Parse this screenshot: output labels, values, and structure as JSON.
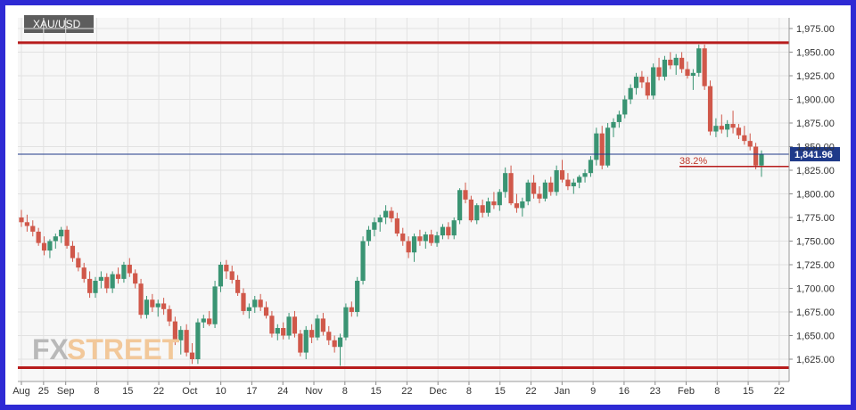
{
  "symbol": "XAU/USD",
  "watermark": {
    "part1": "FX",
    "part2": "STREET"
  },
  "current_price_label": "1,841.96",
  "fib_label": "38.2%",
  "colors": {
    "frame": "#2e2ad4",
    "bull": "#3a9473",
    "bear": "#d0584a",
    "level": "#b71c1c",
    "price_line": "#1f3a8a"
  },
  "chart_data": {
    "type": "candlestick",
    "title": "XAU/USD",
    "ylim": [
      1610,
      1985
    ],
    "y_ticks": [
      "1,975.00",
      "1,950.00",
      "1,925.00",
      "1,900.00",
      "1,875.00",
      "1,850.00",
      "1,825.00",
      "1,800.00",
      "1,775.00",
      "1,750.00",
      "1,725.00",
      "1,700.00",
      "1,675.00",
      "1,650.00",
      "1,625.00"
    ],
    "y_tick_values": [
      1975,
      1950,
      1925,
      1900,
      1875,
      1850,
      1825,
      1800,
      1775,
      1750,
      1725,
      1700,
      1675,
      1650,
      1625
    ],
    "x_ticks": [
      "Aug",
      "25",
      "Sep",
      "8",
      "15",
      "22",
      "Oct",
      "10",
      "17",
      "24",
      "Nov",
      "8",
      "15",
      "22",
      "Dec",
      "8",
      "15",
      "22",
      "Jan",
      "9",
      "16",
      "23",
      "Feb",
      "8",
      "15",
      "22"
    ],
    "x_tick_days": [
      0,
      5,
      10,
      17,
      24,
      31,
      38,
      45,
      52,
      59,
      66,
      73,
      80,
      87,
      94,
      101,
      108,
      115,
      122,
      129,
      136,
      143,
      150,
      157,
      164,
      171
    ],
    "horizontal_levels": [
      1960,
      1616
    ],
    "fib_level": 1829,
    "current_price": 1841.96,
    "ohlc": [
      [
        1775,
        1783,
        1765,
        1770
      ],
      [
        1770,
        1778,
        1760,
        1766
      ],
      [
        1766,
        1772,
        1755,
        1760
      ],
      [
        1760,
        1764,
        1745,
        1748
      ],
      [
        1748,
        1755,
        1735,
        1740
      ],
      [
        1740,
        1752,
        1732,
        1750
      ],
      [
        1750,
        1758,
        1742,
        1755
      ],
      [
        1755,
        1765,
        1748,
        1762
      ],
      [
        1762,
        1766,
        1742,
        1745
      ],
      [
        1745,
        1750,
        1728,
        1732
      ],
      [
        1732,
        1738,
        1718,
        1722
      ],
      [
        1722,
        1727,
        1706,
        1710
      ],
      [
        1710,
        1718,
        1690,
        1695
      ],
      [
        1695,
        1712,
        1690,
        1708
      ],
      [
        1708,
        1718,
        1700,
        1712
      ],
      [
        1712,
        1716,
        1695,
        1700
      ],
      [
        1700,
        1718,
        1695,
        1715
      ],
      [
        1715,
        1722,
        1705,
        1710
      ],
      [
        1710,
        1728,
        1706,
        1725
      ],
      [
        1725,
        1732,
        1712,
        1716
      ],
      [
        1716,
        1720,
        1700,
        1705
      ],
      [
        1705,
        1710,
        1668,
        1672
      ],
      [
        1672,
        1692,
        1668,
        1688
      ],
      [
        1688,
        1694,
        1675,
        1680
      ],
      [
        1680,
        1688,
        1670,
        1684
      ],
      [
        1684,
        1690,
        1672,
        1678
      ],
      [
        1678,
        1682,
        1660,
        1665
      ],
      [
        1665,
        1670,
        1640,
        1645
      ],
      [
        1645,
        1660,
        1630,
        1656
      ],
      [
        1656,
        1662,
        1628,
        1632
      ],
      [
        1632,
        1642,
        1620,
        1625
      ],
      [
        1625,
        1668,
        1620,
        1664
      ],
      [
        1664,
        1672,
        1658,
        1668
      ],
      [
        1668,
        1676,
        1660,
        1662
      ],
      [
        1662,
        1708,
        1658,
        1702
      ],
      [
        1702,
        1728,
        1696,
        1725
      ],
      [
        1725,
        1730,
        1710,
        1718
      ],
      [
        1718,
        1724,
        1705,
        1709
      ],
      [
        1709,
        1714,
        1692,
        1695
      ],
      [
        1695,
        1700,
        1672,
        1676
      ],
      [
        1676,
        1684,
        1668,
        1680
      ],
      [
        1680,
        1692,
        1674,
        1688
      ],
      [
        1688,
        1694,
        1676,
        1680
      ],
      [
        1680,
        1686,
        1668,
        1671
      ],
      [
        1671,
        1676,
        1648,
        1652
      ],
      [
        1652,
        1662,
        1645,
        1658
      ],
      [
        1658,
        1664,
        1646,
        1650
      ],
      [
        1650,
        1674,
        1646,
        1670
      ],
      [
        1670,
        1676,
        1648,
        1652
      ],
      [
        1652,
        1656,
        1628,
        1632
      ],
      [
        1632,
        1660,
        1625,
        1656
      ],
      [
        1656,
        1662,
        1642,
        1648
      ],
      [
        1648,
        1672,
        1645,
        1668
      ],
      [
        1668,
        1674,
        1650,
        1654
      ],
      [
        1654,
        1660,
        1640,
        1645
      ],
      [
        1645,
        1650,
        1632,
        1638
      ],
      [
        1638,
        1652,
        1618,
        1648
      ],
      [
        1648,
        1684,
        1645,
        1680
      ],
      [
        1680,
        1686,
        1670,
        1675
      ],
      [
        1675,
        1712,
        1670,
        1708
      ],
      [
        1708,
        1755,
        1704,
        1750
      ],
      [
        1750,
        1766,
        1745,
        1762
      ],
      [
        1762,
        1775,
        1755,
        1770
      ],
      [
        1770,
        1778,
        1760,
        1775
      ],
      [
        1775,
        1788,
        1768,
        1782
      ],
      [
        1782,
        1786,
        1770,
        1774
      ],
      [
        1774,
        1780,
        1755,
        1758
      ],
      [
        1758,
        1764,
        1745,
        1750
      ],
      [
        1750,
        1755,
        1732,
        1738
      ],
      [
        1738,
        1758,
        1728,
        1755
      ],
      [
        1755,
        1762,
        1745,
        1750
      ],
      [
        1750,
        1760,
        1742,
        1757
      ],
      [
        1757,
        1762,
        1745,
        1748
      ],
      [
        1748,
        1760,
        1744,
        1756
      ],
      [
        1756,
        1768,
        1752,
        1765
      ],
      [
        1765,
        1770,
        1752,
        1756
      ],
      [
        1756,
        1775,
        1752,
        1772
      ],
      [
        1772,
        1806,
        1768,
        1804
      ],
      [
        1804,
        1812,
        1790,
        1794
      ],
      [
        1794,
        1798,
        1770,
        1772
      ],
      [
        1772,
        1790,
        1768,
        1788
      ],
      [
        1788,
        1794,
        1775,
        1780
      ],
      [
        1780,
        1796,
        1776,
        1792
      ],
      [
        1792,
        1802,
        1784,
        1788
      ],
      [
        1788,
        1805,
        1782,
        1802
      ],
      [
        1802,
        1828,
        1796,
        1822
      ],
      [
        1822,
        1830,
        1788,
        1790
      ],
      [
        1790,
        1800,
        1780,
        1785
      ],
      [
        1785,
        1796,
        1776,
        1792
      ],
      [
        1792,
        1815,
        1788,
        1812
      ],
      [
        1812,
        1820,
        1795,
        1800
      ],
      [
        1800,
        1808,
        1790,
        1795
      ],
      [
        1795,
        1815,
        1792,
        1812
      ],
      [
        1812,
        1818,
        1798,
        1802
      ],
      [
        1802,
        1830,
        1798,
        1825
      ],
      [
        1825,
        1836,
        1812,
        1815
      ],
      [
        1815,
        1822,
        1804,
        1808
      ],
      [
        1808,
        1816,
        1800,
        1812
      ],
      [
        1812,
        1820,
        1806,
        1818
      ],
      [
        1818,
        1826,
        1812,
        1822
      ],
      [
        1822,
        1840,
        1818,
        1836
      ],
      [
        1836,
        1870,
        1830,
        1864
      ],
      [
        1864,
        1872,
        1826,
        1830
      ],
      [
        1830,
        1875,
        1828,
        1870
      ],
      [
        1870,
        1880,
        1860,
        1876
      ],
      [
        1876,
        1888,
        1870,
        1884
      ],
      [
        1884,
        1904,
        1880,
        1900
      ],
      [
        1900,
        1916,
        1895,
        1912
      ],
      [
        1912,
        1928,
        1905,
        1924
      ],
      [
        1924,
        1930,
        1912,
        1918
      ],
      [
        1918,
        1924,
        1900,
        1904
      ],
      [
        1904,
        1938,
        1900,
        1934
      ],
      [
        1934,
        1944,
        1920,
        1924
      ],
      [
        1924,
        1946,
        1920,
        1942
      ],
      [
        1942,
        1950,
        1932,
        1936
      ],
      [
        1936,
        1948,
        1926,
        1944
      ],
      [
        1944,
        1950,
        1928,
        1932
      ],
      [
        1932,
        1940,
        1922,
        1925
      ],
      [
        1925,
        1932,
        1910,
        1928
      ],
      [
        1928,
        1958,
        1924,
        1954
      ],
      [
        1954,
        1958,
        1910,
        1914
      ],
      [
        1914,
        1920,
        1862,
        1866
      ],
      [
        1866,
        1880,
        1860,
        1872
      ],
      [
        1872,
        1884,
        1864,
        1868
      ],
      [
        1868,
        1878,
        1860,
        1874
      ],
      [
        1874,
        1888,
        1864,
        1870
      ],
      [
        1870,
        1874,
        1858,
        1862
      ],
      [
        1862,
        1872,
        1852,
        1856
      ],
      [
        1856,
        1864,
        1846,
        1850
      ],
      [
        1850,
        1854,
        1826,
        1830
      ],
      [
        1830,
        1846,
        1818,
        1842
      ]
    ]
  }
}
